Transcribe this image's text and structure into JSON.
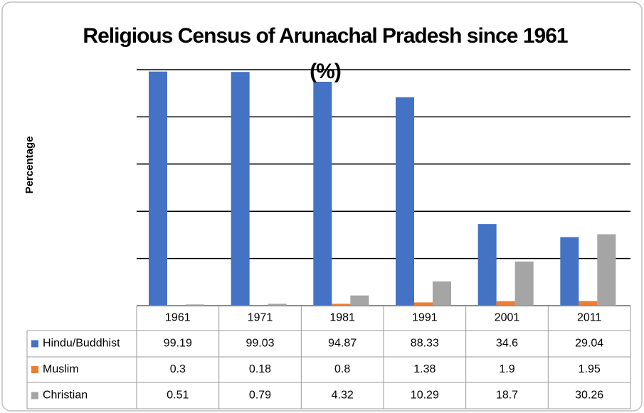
{
  "chart_data": {
    "type": "bar",
    "title": "Religious Census of Arunachal Pradesh since 1961 (%)",
    "y_label": "Percentage",
    "categories": [
      "1961",
      "1971",
      "1981",
      "1991",
      "2001",
      "2011"
    ],
    "series": [
      {
        "name": "Hindu/Buddhist",
        "color": "#4472c4",
        "values": [
          99.19,
          99.03,
          94.87,
          88.33,
          34.6,
          29.04
        ]
      },
      {
        "name": "Muslim",
        "color": "#ed7d31",
        "values": [
          0.3,
          0.18,
          0.8,
          1.38,
          1.9,
          1.95
        ]
      },
      {
        "name": "Christian",
        "color": "#a5a5a5",
        "values": [
          0.51,
          0.79,
          4.32,
          10.29,
          18.7,
          30.26
        ]
      }
    ],
    "ylim": [
      0,
      100
    ],
    "yticks": [
      0,
      20,
      40,
      60,
      80,
      100
    ],
    "grid": true
  }
}
